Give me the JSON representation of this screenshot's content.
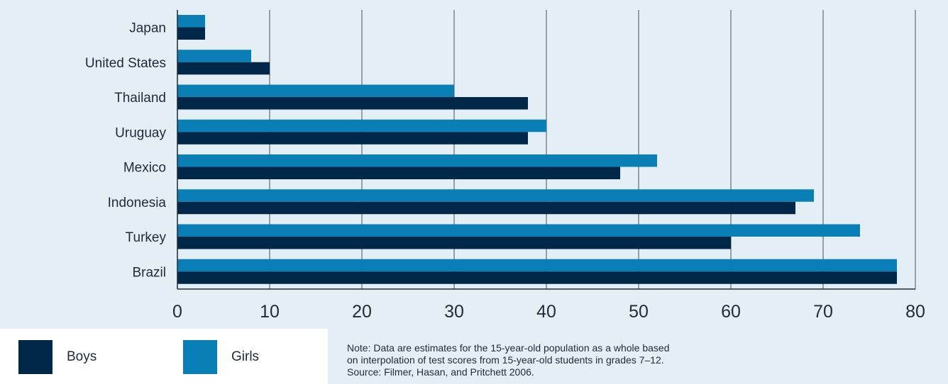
{
  "chart_data": {
    "type": "bar",
    "orientation": "horizontal",
    "categories": [
      "Japan",
      "United States",
      "Thailand",
      "Uruguay",
      "Mexico",
      "Indonesia",
      "Turkey",
      "Brazil"
    ],
    "series": [
      {
        "name": "Girls",
        "color": "#0a7fb5",
        "values": [
          3,
          8,
          30,
          40,
          52,
          69,
          74,
          78
        ]
      },
      {
        "name": "Boys",
        "color": "#012849",
        "values": [
          3,
          10,
          38,
          38,
          48,
          67,
          60,
          78
        ]
      }
    ],
    "xlim": [
      0,
      80
    ],
    "xticks": [
      "0",
      "10",
      "20",
      "30",
      "40",
      "50",
      "60",
      "70",
      "80"
    ],
    "grid": "vertical",
    "legend_position": "bottom-left"
  },
  "legend": {
    "boys_label": "Boys",
    "girls_label": "Girls",
    "boys_color": "#012849",
    "girls_color": "#0a7fb5"
  },
  "note": {
    "line1": "Note: Data are estimates for the 15-year-old population as a whole based",
    "line2": "on interpolation of test scores from 15-year-old students in grades 7–12.",
    "line3": "Source: Filmer, Hasan, and Pritchett 2006."
  }
}
